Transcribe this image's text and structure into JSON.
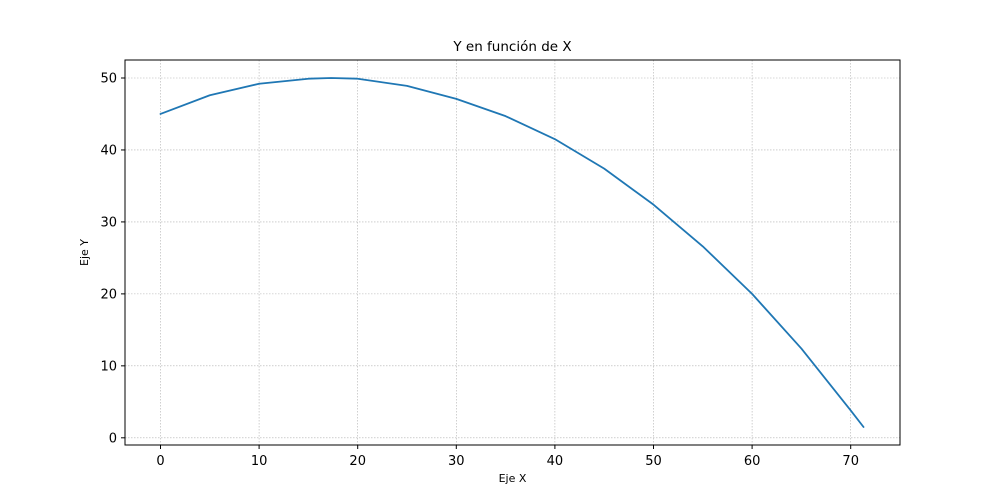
{
  "chart_data": {
    "type": "line",
    "title": "Y en función de X",
    "xlabel": "Eje X",
    "ylabel": "Eje Y",
    "xlim": [
      -3.6,
      75.0
    ],
    "ylim": [
      -1.0,
      52.5
    ],
    "xticks": [
      0,
      10,
      20,
      30,
      40,
      50,
      60,
      70
    ],
    "yticks": [
      0,
      10,
      20,
      30,
      40,
      50
    ],
    "grid": true,
    "line_color": "#1f77b4",
    "series": [
      {
        "x": [
          0,
          5,
          10,
          15,
          17.3,
          20,
          25,
          30,
          35,
          40,
          45,
          50,
          55,
          60,
          65,
          70,
          71.3
        ],
        "y": [
          45.0,
          47.6,
          49.2,
          49.9,
          50.0,
          49.9,
          48.9,
          47.1,
          44.7,
          41.5,
          37.4,
          32.4,
          26.6,
          20.0,
          12.4,
          3.8,
          1.5
        ]
      }
    ]
  }
}
